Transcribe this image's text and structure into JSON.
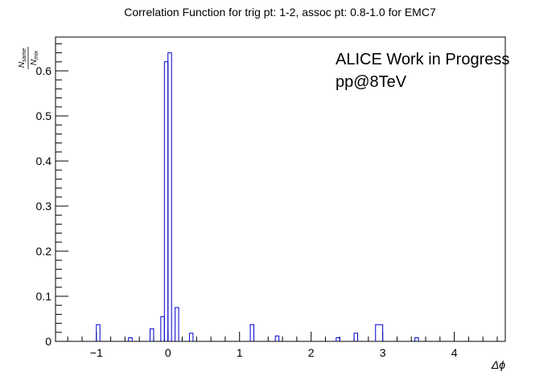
{
  "chart_data": {
    "type": "histogram",
    "title": "Correlation Function for trig pt: 1-2, assoc pt: 0.8-1.0 for EMC7",
    "xlabel": "Δϕ",
    "ylabel_num": "N",
    "ylabel_num_sub": "same",
    "ylabel_den": "N",
    "ylabel_den_sub": "mix",
    "xlim": [
      -1.5708,
      4.7124
    ],
    "ylim": [
      0,
      0.675
    ],
    "x_ticks": [
      -1,
      0,
      1,
      2,
      3,
      4
    ],
    "x_tick_labels": [
      "−1",
      "0",
      "1",
      "2",
      "3",
      "4"
    ],
    "y_ticks": [
      0,
      0.1,
      0.2,
      0.3,
      0.4,
      0.5,
      0.6
    ],
    "y_tick_labels": [
      "0",
      "0.1",
      "0.2",
      "0.3",
      "0.4",
      "0.5",
      "0.6"
    ],
    "line_color": "#0000cc",
    "annotations": [
      "ALICE Work in Progress",
      "pp@8TeV"
    ],
    "bins": [
      {
        "x0": -1.0,
        "x1": -0.95,
        "y": 0.037
      },
      {
        "x0": -0.55,
        "x1": -0.5,
        "y": 0.008
      },
      {
        "x0": -0.25,
        "x1": -0.2,
        "y": 0.028
      },
      {
        "x0": -0.1,
        "x1": -0.05,
        "y": 0.055
      },
      {
        "x0": -0.05,
        "x1": 0.0,
        "y": 0.62
      },
      {
        "x0": 0.0,
        "x1": 0.05,
        "y": 0.64
      },
      {
        "x0": 0.1,
        "x1": 0.15,
        "y": 0.075
      },
      {
        "x0": 0.3,
        "x1": 0.35,
        "y": 0.018
      },
      {
        "x0": 1.15,
        "x1": 1.2,
        "y": 0.037
      },
      {
        "x0": 1.5,
        "x1": 1.55,
        "y": 0.012
      },
      {
        "x0": 2.35,
        "x1": 2.4,
        "y": 0.008
      },
      {
        "x0": 2.6,
        "x1": 2.65,
        "y": 0.018
      },
      {
        "x0": 2.9,
        "x1": 3.0,
        "y": 0.037
      },
      {
        "x0": 3.45,
        "x1": 3.5,
        "y": 0.008
      }
    ]
  }
}
